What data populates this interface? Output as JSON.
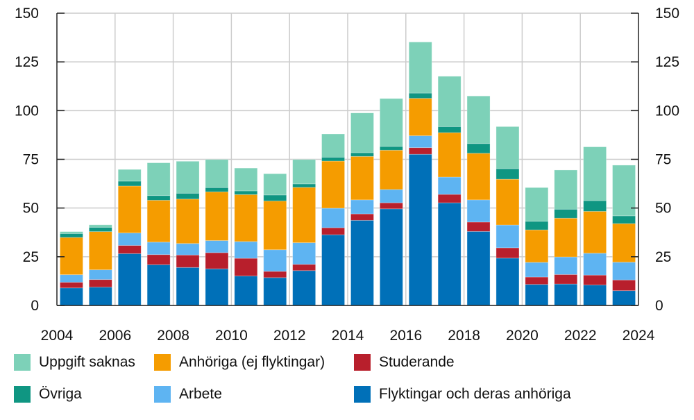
{
  "chart_data": {
    "type": "bar",
    "stacked": true,
    "categories": [
      2004,
      2005,
      2006,
      2007,
      2008,
      2009,
      2010,
      2011,
      2012,
      2013,
      2014,
      2015,
      2016,
      2017,
      2018,
      2019,
      2020,
      2021,
      2022,
      2023
    ],
    "xlim": [
      2004,
      2024
    ],
    "xticks": [
      "2004",
      "2006",
      "2008",
      "2010",
      "2012",
      "2014",
      "2016",
      "2018",
      "2020",
      "2022",
      "2024"
    ],
    "ylim": [
      0,
      150
    ],
    "yticks": [
      "0",
      "25",
      "50",
      "75",
      "100",
      "125",
      "150"
    ],
    "grid": true,
    "legend_position": "bottom",
    "series": [
      {
        "name": "Flyktingar och deras anhöriga",
        "color": "#0070b8",
        "values": [
          9.0,
          9.4,
          26.6,
          20.9,
          19.5,
          18.8,
          15.1,
          14.3,
          17.9,
          36.3,
          43.7,
          49.6,
          77.6,
          52.7,
          38.0,
          24.3,
          10.8,
          11.0,
          10.5,
          7.6
        ]
      },
      {
        "name": "Studerande",
        "color": "#b81f2c",
        "values": [
          2.9,
          3.9,
          4.2,
          5.2,
          6.4,
          8.3,
          9.1,
          3.2,
          3.2,
          3.6,
          3.3,
          3.1,
          3.4,
          4.3,
          4.8,
          5.3,
          3.8,
          4.9,
          5.1,
          5.5
        ]
      },
      {
        "name": "Arbete",
        "color": "#5eb4f2",
        "values": [
          3.9,
          5.0,
          6.4,
          6.4,
          5.9,
          6.2,
          8.6,
          11.1,
          11.1,
          10.0,
          7.2,
          6.8,
          6.1,
          8.9,
          11.4,
          11.7,
          7.5,
          9.0,
          11.2,
          9.1
        ]
      },
      {
        "name": "Anhöriga (ej flyktingar)",
        "color": "#f59c00",
        "values": [
          19.1,
          19.6,
          24.1,
          21.5,
          22.8,
          25.0,
          24.1,
          25.0,
          28.4,
          24.2,
          22.3,
          20.2,
          19.2,
          22.8,
          23.9,
          23.5,
          16.7,
          19.9,
          21.5,
          19.8
        ]
      },
      {
        "name": "Övriga",
        "color": "#0f9682",
        "values": [
          2.0,
          2.2,
          2.5,
          2.4,
          3.0,
          2.2,
          1.9,
          3.1,
          1.8,
          2.0,
          1.9,
          1.9,
          2.7,
          3.1,
          5.0,
          5.4,
          4.4,
          4.6,
          5.5,
          4.0
        ]
      },
      {
        "name": "Uppgift saknas",
        "color": "#7dd1b8",
        "values": [
          1.0,
          1.3,
          6.0,
          16.8,
          16.4,
          14.4,
          11.7,
          10.9,
          12.5,
          11.9,
          20.4,
          24.6,
          26.2,
          25.8,
          24.4,
          21.6,
          17.3,
          20.1,
          27.6,
          26.0
        ]
      }
    ]
  },
  "legend": [
    {
      "label": "Uppgift saknas",
      "color": "#7dd1b8"
    },
    {
      "label": "Anhöriga (ej flyktingar)",
      "color": "#f59c00"
    },
    {
      "label": "Studerande",
      "color": "#b81f2c"
    },
    {
      "label": "Övriga",
      "color": "#0f9682"
    },
    {
      "label": "Arbete",
      "color": "#5eb4f2"
    },
    {
      "label": "Flyktingar och deras anhöriga",
      "color": "#0070b8"
    }
  ]
}
